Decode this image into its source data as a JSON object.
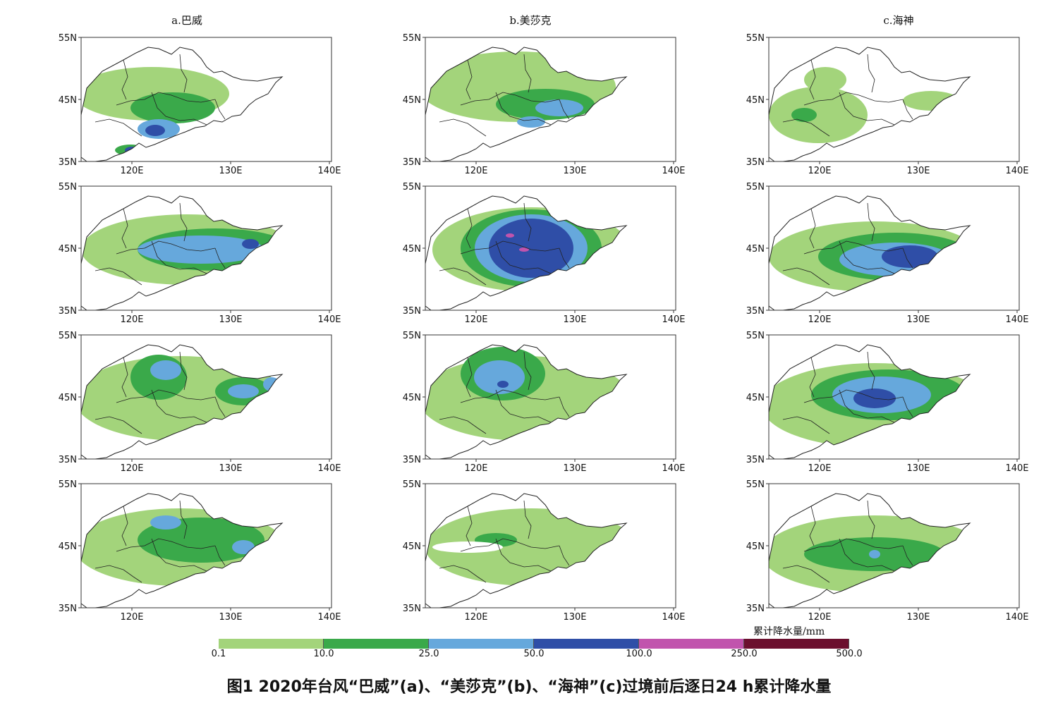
{
  "columns": [
    {
      "title": "a.巴威"
    },
    {
      "title": "b.美莎克"
    },
    {
      "title": "c.海神"
    }
  ],
  "lat_ticks": [
    "55N",
    "45N",
    "35N"
  ],
  "lon_ticks": [
    "120E",
    "130E",
    "140E"
  ],
  "legend": {
    "unit": "累计降水量/mm",
    "levels": [
      "0.1",
      "10.0",
      "25.0",
      "50.0",
      "100.0",
      "250.0",
      "500.0"
    ],
    "colors": [
      "#a3d47b",
      "#3aa94a",
      "#66a8dc",
      "#2f4ea7",
      "#c154ad",
      "#6b0f2e"
    ]
  },
  "caption": "图1  2020年台风“巴威”(a)、“美莎克”(b)、“海神”(c)过境前后逐日24 h累计降水量",
  "colors": {
    "light_green": "#a3d47b",
    "dark_green": "#3aa94a",
    "light_blue": "#66a8dc",
    "dark_blue": "#2f4ea7",
    "magenta": "#c154ad",
    "land_outline": "#222222"
  },
  "panels": [
    {
      "row": 1,
      "col": "a",
      "max_level": "100.0"
    },
    {
      "row": 1,
      "col": "b",
      "max_level": "50.0"
    },
    {
      "row": 1,
      "col": "c",
      "max_level": "25.0"
    },
    {
      "row": 2,
      "col": "a",
      "max_level": "100.0"
    },
    {
      "row": 2,
      "col": "b",
      "max_level": "250.0"
    },
    {
      "row": 2,
      "col": "c",
      "max_level": "100.0"
    },
    {
      "row": 3,
      "col": "a",
      "max_level": "50.0"
    },
    {
      "row": 3,
      "col": "b",
      "max_level": "100.0"
    },
    {
      "row": 3,
      "col": "c",
      "max_level": "100.0"
    },
    {
      "row": 4,
      "col": "a",
      "max_level": "50.0"
    },
    {
      "row": 4,
      "col": "b",
      "max_level": "25.0"
    },
    {
      "row": 4,
      "col": "c",
      "max_level": "50.0"
    }
  ]
}
